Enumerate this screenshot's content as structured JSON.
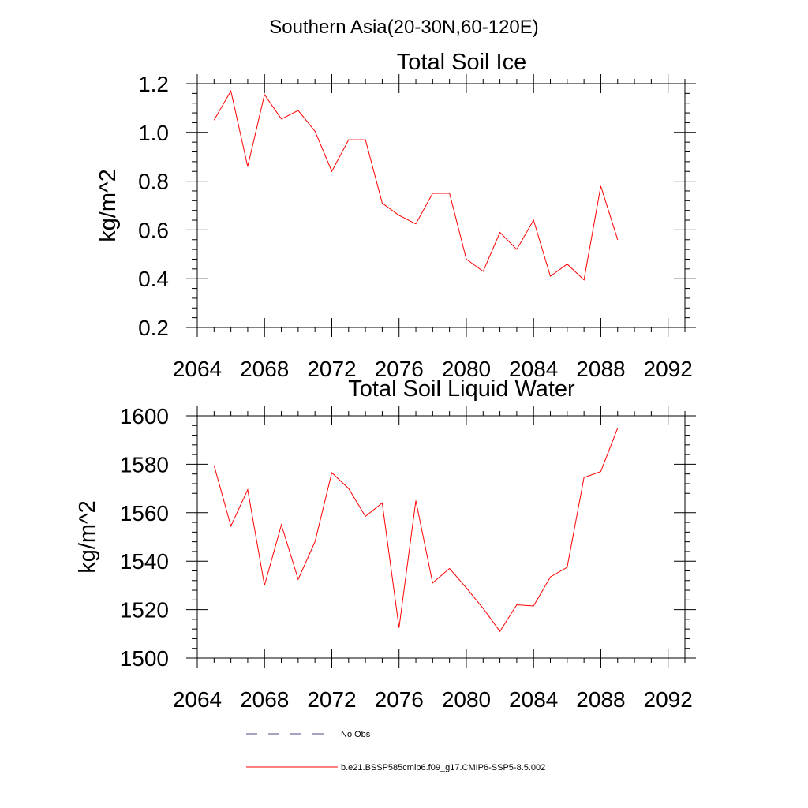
{
  "figure_title": "Southern Asia(20-30N,60-120E)",
  "chart_data": [
    {
      "type": "line",
      "title": "Total Soil Ice",
      "ylabel": "kg/m^2",
      "xlabel": "",
      "xlim": [
        2064,
        2093
      ],
      "ylim": [
        0.2,
        1.2
      ],
      "xticks": [
        2064,
        2068,
        2072,
        2076,
        2080,
        2084,
        2088,
        2092
      ],
      "xtick_labels": [
        "2064",
        "2068",
        "2072",
        "2076",
        "2080",
        "2084",
        "2088",
        "2092"
      ],
      "yticks": [
        0.2,
        0.4,
        0.6,
        0.8,
        1.0,
        1.2
      ],
      "ytick_labels": [
        "0.2",
        "0.4",
        "0.6",
        "0.8",
        "1.0",
        "1.2"
      ],
      "x": [
        2065,
        2066,
        2067,
        2068,
        2069,
        2070,
        2071,
        2072,
        2073,
        2074,
        2075,
        2076,
        2077,
        2078,
        2079,
        2080,
        2081,
        2082,
        2083,
        2084,
        2085,
        2086,
        2087,
        2088,
        2089
      ],
      "series": [
        {
          "name": "b.e21.BSSP585cmip6.f09_g17.CMIP6-SSP5-8.5.002",
          "color": "#ff0000",
          "values": [
            1.05,
            1.17,
            0.86,
            1.155,
            1.055,
            1.09,
            1.005,
            0.84,
            0.97,
            0.97,
            0.71,
            0.66,
            0.625,
            0.75,
            0.75,
            0.48,
            0.43,
            0.59,
            0.52,
            0.64,
            0.41,
            0.46,
            0.395,
            0.78,
            0.56
          ]
        }
      ]
    },
    {
      "type": "line",
      "title": "Total Soil Liquid Water",
      "ylabel": "kg/m^2",
      "xlabel": "",
      "xlim": [
        2064,
        2093
      ],
      "ylim": [
        1500,
        1600
      ],
      "xticks": [
        2064,
        2068,
        2072,
        2076,
        2080,
        2084,
        2088,
        2092
      ],
      "xtick_labels": [
        "2064",
        "2068",
        "2072",
        "2076",
        "2080",
        "2084",
        "2088",
        "2092"
      ],
      "yticks": [
        1500,
        1520,
        1540,
        1560,
        1580,
        1600
      ],
      "ytick_labels": [
        "1500",
        "1520",
        "1540",
        "1560",
        "1580",
        "1600"
      ],
      "x": [
        2065,
        2066,
        2067,
        2068,
        2069,
        2070,
        2071,
        2072,
        2073,
        2074,
        2075,
        2076,
        2077,
        2078,
        2079,
        2080,
        2081,
        2082,
        2083,
        2084,
        2085,
        2086,
        2087,
        2088,
        2089
      ],
      "series": [
        {
          "name": "b.e21.BSSP585cmip6.f09_g17.CMIP6-SSP5-8.5.002",
          "color": "#ff0000",
          "values": [
            1579.5,
            1554.5,
            1569.5,
            1530,
            1555,
            1532.5,
            1548,
            1576.5,
            1570,
            1558.5,
            1564,
            1512.5,
            1565,
            1531,
            1537,
            1529,
            1520.5,
            1511,
            1522,
            1521.5,
            1533.5,
            1537.5,
            1574.5,
            1577,
            1595
          ]
        }
      ]
    }
  ],
  "legend": {
    "placement": "bottom",
    "items": [
      {
        "label": "No Obs",
        "color": "#4a4a80",
        "style": "dashed"
      },
      {
        "label": "b.e21.BSSP585cmip6.f09_g17.CMIP6-SSP5-8.5.002",
        "color": "#ff0000",
        "style": "solid"
      }
    ]
  }
}
